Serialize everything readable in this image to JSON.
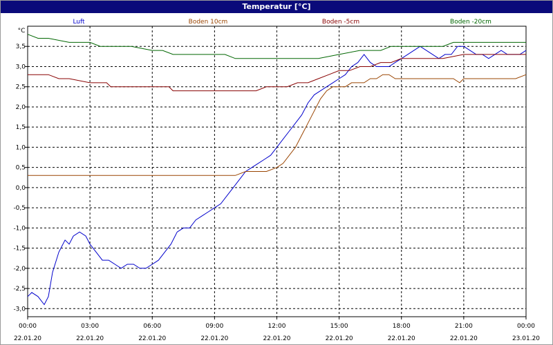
{
  "window": {
    "title": "Temperatur [°C]"
  },
  "chart_data": {
    "type": "line",
    "title": "Temperatur [°C]",
    "ylabel": "°C",
    "xlabel": "",
    "ylim": [
      -3.2,
      4.0
    ],
    "xlim": [
      "22.01.20 00:00",
      "23.01.20 00:00"
    ],
    "grid": true,
    "legend_position": "top",
    "y_ticks": [
      "-3,0",
      "-2,5",
      "-2,0",
      "-1,5",
      "-1,0",
      "-0,5",
      "0,0",
      "0,5",
      "1,0",
      "1,5",
      "2,0",
      "2,5",
      "3,0",
      "3,5"
    ],
    "y_tick_values": [
      -3.0,
      -2.5,
      -2.0,
      -1.5,
      -1.0,
      -0.5,
      0.0,
      0.5,
      1.0,
      1.5,
      2.0,
      2.5,
      3.0,
      3.5
    ],
    "x_tick_times": [
      "00:00",
      "03:00",
      "06:00",
      "09:00",
      "12:00",
      "15:00",
      "18:00",
      "21:00",
      "00:00"
    ],
    "x_tick_dates": [
      "22.01.20",
      "22.01.20",
      "22.01.20",
      "22.01.20",
      "22.01.20",
      "22.01.20",
      "22.01.20",
      "22.01.20",
      "23.01.20"
    ],
    "x_tick_hours": [
      0,
      3,
      6,
      9,
      12,
      15,
      18,
      21,
      24
    ],
    "series": [
      {
        "name": "Luft",
        "color": "#0000cc",
        "x_hours": [
          0,
          0.2,
          0.5,
          0.8,
          1.0,
          1.2,
          1.5,
          1.8,
          2.0,
          2.2,
          2.5,
          2.8,
          3.0,
          3.3,
          3.6,
          3.9,
          4.2,
          4.5,
          4.8,
          5.1,
          5.4,
          5.7,
          6.0,
          6.3,
          6.6,
          6.9,
          7.2,
          7.5,
          7.8,
          8.1,
          8.4,
          8.7,
          9.0,
          9.3,
          9.6,
          9.9,
          10.2,
          10.5,
          10.8,
          11.1,
          11.4,
          11.7,
          12.0,
          12.3,
          12.6,
          12.9,
          13.2,
          13.5,
          13.8,
          14.1,
          14.4,
          14.7,
          15.0,
          15.3,
          15.6,
          15.9,
          16.2,
          16.5,
          16.8,
          17.1,
          17.4,
          17.7,
          18.0,
          18.3,
          18.6,
          18.9,
          19.2,
          19.5,
          19.8,
          20.1,
          20.4,
          20.7,
          21.0,
          21.3,
          21.6,
          21.9,
          22.2,
          22.5,
          22.8,
          23.1,
          23.4,
          23.7,
          24.0
        ],
        "values": [
          -2.7,
          -2.6,
          -2.7,
          -2.9,
          -2.7,
          -2.1,
          -1.6,
          -1.3,
          -1.4,
          -1.2,
          -1.1,
          -1.2,
          -1.4,
          -1.6,
          -1.8,
          -1.8,
          -1.9,
          -2.0,
          -1.9,
          -1.9,
          -2.0,
          -2.0,
          -1.9,
          -1.8,
          -1.6,
          -1.4,
          -1.1,
          -1.0,
          -1.0,
          -0.8,
          -0.7,
          -0.6,
          -0.5,
          -0.4,
          -0.2,
          0.0,
          0.2,
          0.4,
          0.5,
          0.6,
          0.7,
          0.8,
          1.0,
          1.2,
          1.4,
          1.6,
          1.8,
          2.1,
          2.3,
          2.4,
          2.5,
          2.6,
          2.7,
          2.8,
          3.0,
          3.1,
          3.3,
          3.1,
          3.0,
          3.0,
          3.0,
          3.1,
          3.2,
          3.3,
          3.4,
          3.5,
          3.4,
          3.3,
          3.2,
          3.3,
          3.3,
          3.5,
          3.5,
          3.4,
          3.3,
          3.3,
          3.2,
          3.3,
          3.4,
          3.3,
          3.3,
          3.3,
          3.4
        ]
      },
      {
        "name": "Boden 10cm",
        "color": "#994400",
        "x_hours": [
          0,
          1.0,
          2.0,
          3.0,
          4.0,
          5.0,
          6.0,
          7.0,
          8.0,
          9.0,
          10.0,
          10.5,
          11.0,
          11.5,
          12.0,
          12.3,
          12.6,
          12.9,
          13.2,
          13.5,
          13.8,
          14.1,
          14.4,
          14.7,
          15.0,
          15.3,
          15.6,
          15.9,
          16.2,
          16.5,
          16.8,
          17.1,
          17.4,
          17.7,
          18.0,
          19.0,
          20.0,
          20.5,
          20.8,
          21.0,
          22.0,
          23.0,
          23.5,
          24.0
        ],
        "values": [
          0.3,
          0.3,
          0.3,
          0.3,
          0.3,
          0.3,
          0.3,
          0.3,
          0.3,
          0.3,
          0.3,
          0.4,
          0.4,
          0.4,
          0.5,
          0.6,
          0.8,
          1.0,
          1.3,
          1.6,
          1.9,
          2.2,
          2.4,
          2.5,
          2.5,
          2.5,
          2.6,
          2.6,
          2.6,
          2.7,
          2.7,
          2.8,
          2.8,
          2.7,
          2.7,
          2.7,
          2.7,
          2.7,
          2.6,
          2.7,
          2.7,
          2.7,
          2.7,
          2.8
        ]
      },
      {
        "name": "Boden -5cm",
        "color": "#880000",
        "x_hours": [
          0,
          0.3,
          1.0,
          1.5,
          2.0,
          3.0,
          3.8,
          4.0,
          5.0,
          6.0,
          6.8,
          7.0,
          8.0,
          9.0,
          10.0,
          11.0,
          11.5,
          12.0,
          12.5,
          13.0,
          13.5,
          14.0,
          14.5,
          15.0,
          15.5,
          16.0,
          16.5,
          17.0,
          17.5,
          18.0,
          19.0,
          20.0,
          21.0,
          22.0,
          23.0,
          23.5,
          24.0
        ],
        "values": [
          2.8,
          2.8,
          2.8,
          2.7,
          2.7,
          2.6,
          2.6,
          2.5,
          2.5,
          2.5,
          2.5,
          2.4,
          2.4,
          2.4,
          2.4,
          2.4,
          2.5,
          2.5,
          2.5,
          2.6,
          2.6,
          2.7,
          2.8,
          2.9,
          2.9,
          3.0,
          3.0,
          3.1,
          3.1,
          3.2,
          3.2,
          3.2,
          3.3,
          3.3,
          3.3,
          3.3,
          3.3
        ]
      },
      {
        "name": "Boden -20cm",
        "color": "#006600",
        "x_hours": [
          0,
          0.5,
          1.0,
          2.0,
          3.0,
          3.5,
          4.0,
          5.0,
          6.0,
          6.5,
          7.0,
          8.0,
          9.0,
          9.5,
          10.0,
          11.0,
          12.0,
          13.0,
          14.0,
          15.0,
          16.0,
          17.0,
          17.5,
          18.0,
          19.0,
          20.0,
          20.5,
          21.0,
          22.0,
          23.0,
          24.0
        ],
        "values": [
          3.8,
          3.7,
          3.7,
          3.6,
          3.6,
          3.5,
          3.5,
          3.5,
          3.4,
          3.4,
          3.3,
          3.3,
          3.3,
          3.3,
          3.2,
          3.2,
          3.2,
          3.2,
          3.2,
          3.3,
          3.4,
          3.4,
          3.5,
          3.5,
          3.5,
          3.5,
          3.6,
          3.6,
          3.6,
          3.6,
          3.6
        ]
      }
    ]
  }
}
